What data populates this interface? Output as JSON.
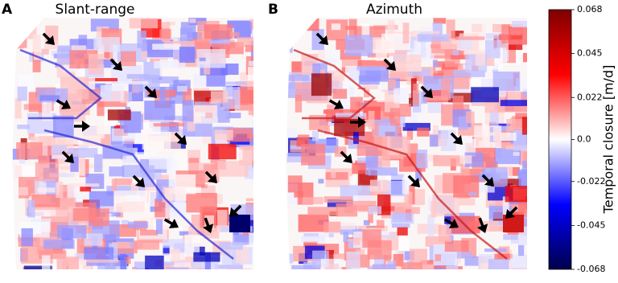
{
  "chart_data": {
    "type": "image",
    "panels": [
      {
        "label": "A",
        "title": "Slant-range"
      },
      {
        "label": "B",
        "title": "Azimuth"
      }
    ],
    "colorbar": {
      "label": "Temporal closure [m/d]",
      "lim": [
        -0.068,
        0.068
      ],
      "ticks": [
        0.068,
        0.045,
        0.022,
        {
          "value": 0,
          "label": "0.0"
        },
        -0.022,
        -0.045,
        -0.068
      ],
      "colormap": [
        "#00004c",
        "#0000ff",
        "#ffffff",
        "#ff0000",
        "#7f0000"
      ]
    }
  }
}
